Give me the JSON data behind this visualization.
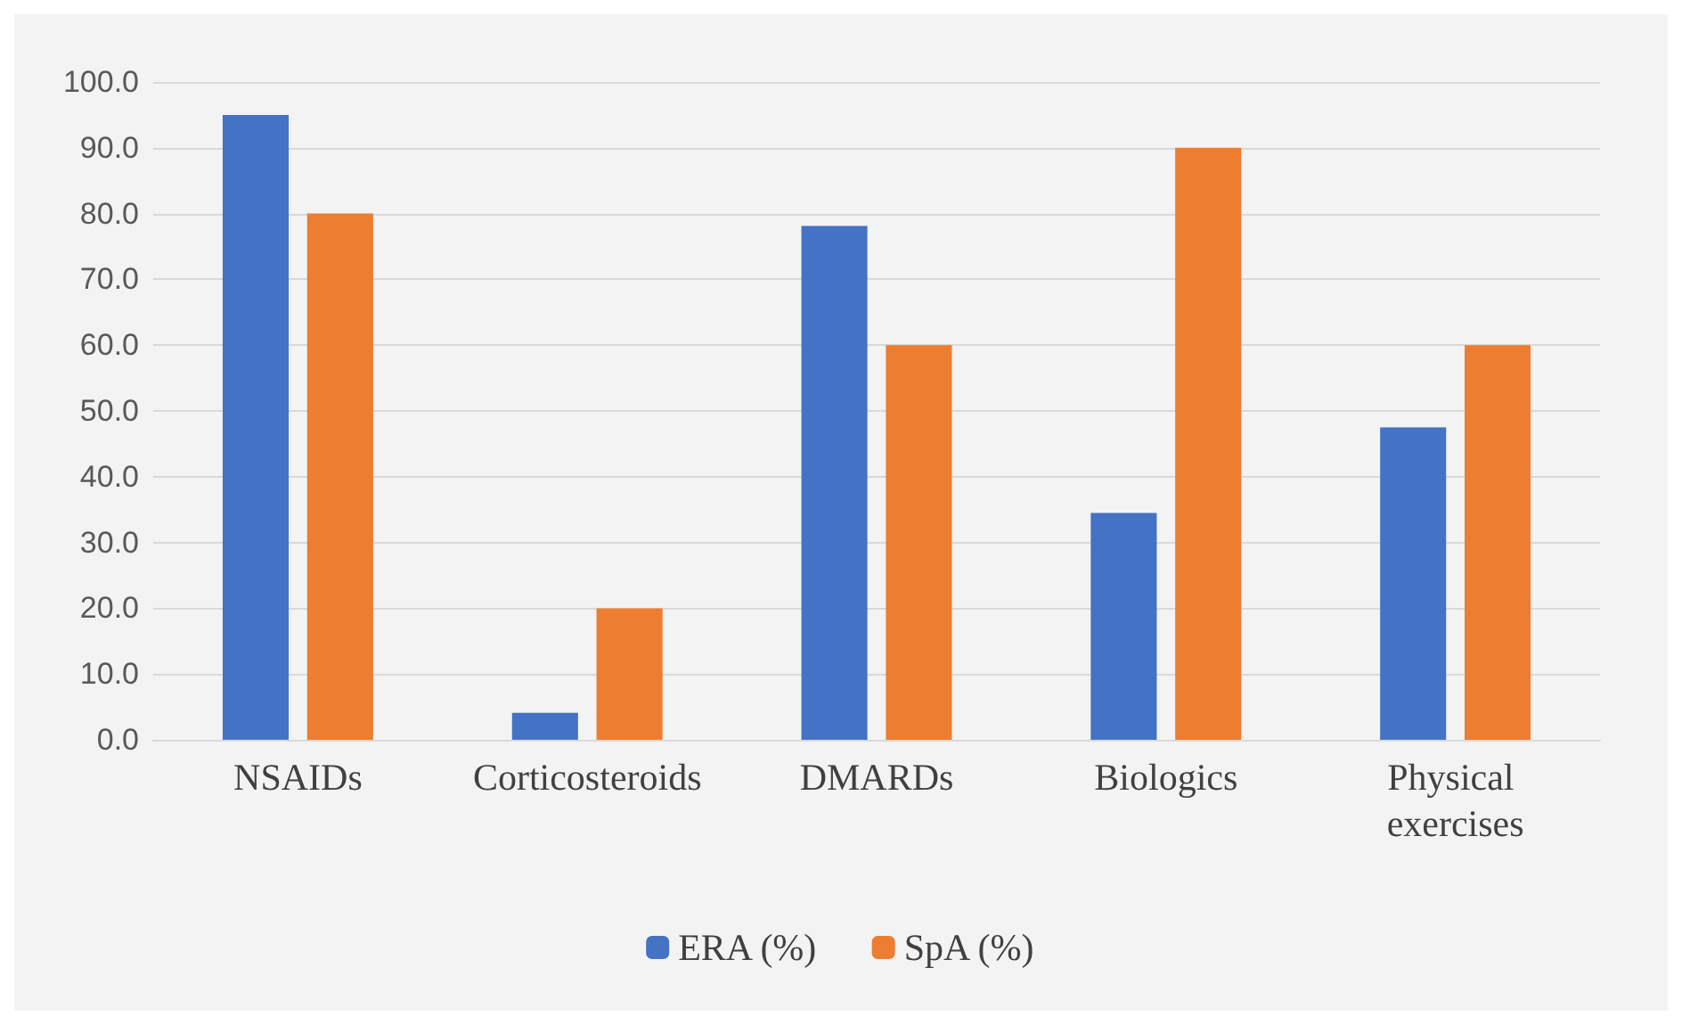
{
  "chart_data": {
    "type": "bar",
    "categories": [
      "NSAIDs",
      "Corticosteroids",
      "DMARDs",
      "Biologics",
      "Physical exercises"
    ],
    "series": [
      {
        "name": "ERA (%)",
        "color": "#4472c4",
        "values": [
          95,
          4.1,
          78.1,
          34.5,
          47.5
        ]
      },
      {
        "name": "SpA (%)",
        "color": "#ed7d31",
        "values": [
          80,
          20,
          60,
          90,
          60
        ]
      }
    ],
    "ylim": [
      0,
      100
    ],
    "yticks": [
      {
        "value": 0,
        "label": "0.0"
      },
      {
        "value": 10,
        "label": "10.0"
      },
      {
        "value": 20,
        "label": "20.0"
      },
      {
        "value": 30,
        "label": "30.0"
      },
      {
        "value": 40,
        "label": "40.0"
      },
      {
        "value": 50,
        "label": "50.0"
      },
      {
        "value": 60,
        "label": "60.0"
      },
      {
        "value": 70,
        "label": "70.0"
      },
      {
        "value": 80,
        "label": "80.0"
      },
      {
        "value": 90,
        "label": "90.0"
      },
      {
        "value": 100,
        "label": "100.0"
      }
    ],
    "grid": "y",
    "legend": "bottom"
  }
}
